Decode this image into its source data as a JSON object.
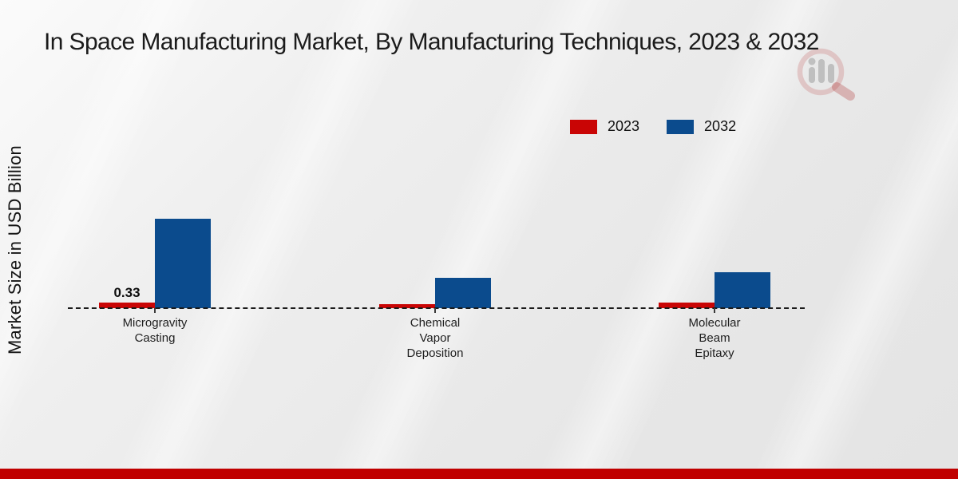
{
  "page": {
    "title": "In Space Manufacturing Market, By Manufacturing Techniques, 2023 & 2032",
    "y_axis_label": "Market Size in USD Billion"
  },
  "legend": {
    "items": [
      {
        "label": "2023",
        "color": "#c90505"
      },
      {
        "label": "2032",
        "color": "#0b4b8d"
      }
    ]
  },
  "chart_data": {
    "type": "bar",
    "title": "In Space Manufacturing Market, By Manufacturing Techniques, 2023 & 2032",
    "xlabel": "",
    "ylabel": "Market Size in USD Billion",
    "categories": [
      "Microgravity Casting",
      "Chemical Vapor Deposition",
      "Molecular Beam Epitaxy"
    ],
    "category_lines": [
      [
        "Microgravity",
        "Casting"
      ],
      [
        "Chemical",
        "Vapor",
        "Deposition"
      ],
      [
        "Molecular",
        "Beam",
        "Epitaxy"
      ]
    ],
    "series": [
      {
        "name": "2023",
        "color": "#c90505",
        "values": [
          0.33,
          0.25,
          0.36
        ],
        "data_labels": [
          "0.33",
          "",
          ""
        ]
      },
      {
        "name": "2032",
        "color": "#0b4b8d",
        "values": [
          5.65,
          1.9,
          2.25
        ],
        "data_labels": [
          "",
          "",
          ""
        ]
      }
    ],
    "ylim": [
      0,
      7
    ],
    "grid": false,
    "axis_baseline_style": "dashed",
    "legend_position": "top-right"
  },
  "watermark": {
    "icon": "magnifier-bar-chart-logo",
    "ring_color": "rgba(186,68,68,0.22)",
    "bars_color": "rgba(150,150,150,0.5)",
    "handle_color": "rgba(176,52,52,0.3)"
  },
  "footer": {
    "accent_color": "#c00000"
  }
}
